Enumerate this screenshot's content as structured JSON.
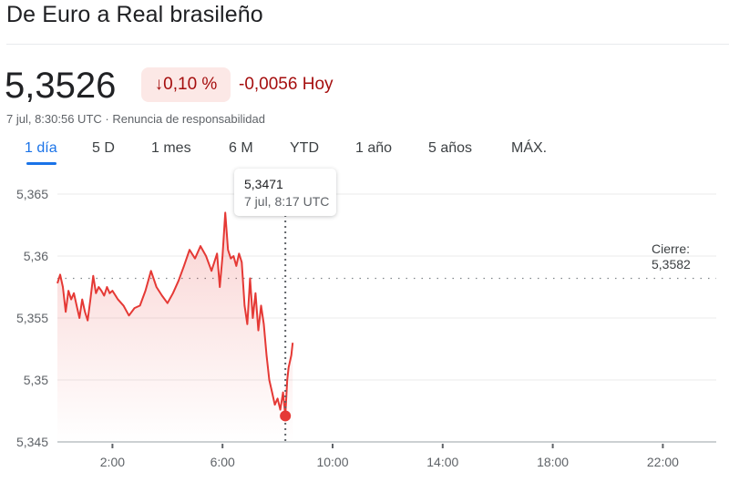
{
  "header": {
    "title": "De Euro a Real brasileño"
  },
  "quote": {
    "price": "5,3526",
    "change_percent": "↓0,10 %",
    "change_abs": "-0,0056 Hoy",
    "timestamp": "7 jul, 8:30:56 UTC · Renuncia de responsabilidad"
  },
  "tabs": [
    {
      "label": "1 día",
      "active": true
    },
    {
      "label": "5 D"
    },
    {
      "label": "1 mes"
    },
    {
      "label": "6 M"
    },
    {
      "label": "YTD"
    },
    {
      "label": "1 año"
    },
    {
      "label": "5 años"
    },
    {
      "label": "MÁX."
    }
  ],
  "tooltip": {
    "value": "5,3471",
    "time": "7 jul, 8:17 UTC"
  },
  "close_marker": {
    "label": "Cierre:",
    "value": "5,3582"
  },
  "colors": {
    "line": "#e53935",
    "negative_text": "#a50e0e",
    "negative_bg": "#fce8e6",
    "accent": "#1a73e8"
  },
  "chart_data": {
    "type": "line",
    "title": "De Euro a Real brasileño (1 día)",
    "xlabel": "",
    "ylabel": "",
    "x_ticks": [
      "2:00",
      "6:00",
      "10:00",
      "14:00",
      "18:00",
      "22:00"
    ],
    "y_ticks": [
      "5,345",
      "5,35",
      "5,355",
      "5,36",
      "5,365"
    ],
    "ylim": [
      5.345,
      5.3665
    ],
    "xlim_hours": [
      0,
      24
    ],
    "grid": true,
    "previous_close": 5.3582,
    "highlight_point": {
      "time": "8:17",
      "value": 5.3471
    },
    "series": [
      {
        "name": "EUR/BRL",
        "x_hours": [
          0.0,
          0.1,
          0.2,
          0.3,
          0.4,
          0.5,
          0.6,
          0.7,
          0.8,
          0.9,
          1.0,
          1.1,
          1.2,
          1.3,
          1.4,
          1.5,
          1.6,
          1.7,
          1.8,
          1.9,
          2.0,
          2.2,
          2.4,
          2.6,
          2.8,
          3.0,
          3.2,
          3.4,
          3.6,
          3.8,
          4.0,
          4.2,
          4.4,
          4.6,
          4.8,
          5.0,
          5.2,
          5.4,
          5.6,
          5.8,
          5.9,
          6.0,
          6.1,
          6.2,
          6.3,
          6.4,
          6.5,
          6.6,
          6.7,
          6.8,
          6.9,
          7.0,
          7.1,
          7.2,
          7.3,
          7.4,
          7.5,
          7.6,
          7.7,
          7.8,
          7.9,
          8.0,
          8.1,
          8.2,
          8.283,
          8.35,
          8.4,
          8.5,
          8.55
        ],
        "values": [
          5.3578,
          5.3585,
          5.3575,
          5.3555,
          5.3572,
          5.3565,
          5.357,
          5.356,
          5.355,
          5.3565,
          5.3555,
          5.3548,
          5.3565,
          5.3584,
          5.357,
          5.3575,
          5.3572,
          5.3568,
          5.3575,
          5.357,
          5.3572,
          5.3565,
          5.356,
          5.3552,
          5.3558,
          5.356,
          5.3572,
          5.3588,
          5.3575,
          5.3568,
          5.3562,
          5.357,
          5.358,
          5.3592,
          5.3605,
          5.3598,
          5.3608,
          5.36,
          5.3588,
          5.3602,
          5.3575,
          5.36,
          5.3635,
          5.3605,
          5.3598,
          5.36,
          5.3592,
          5.3602,
          5.3595,
          5.356,
          5.3545,
          5.3582,
          5.355,
          5.357,
          5.354,
          5.356,
          5.3545,
          5.352,
          5.35,
          5.349,
          5.348,
          5.3485,
          5.3476,
          5.349,
          5.3471,
          5.35,
          5.351,
          5.352,
          5.353
        ]
      }
    ]
  }
}
